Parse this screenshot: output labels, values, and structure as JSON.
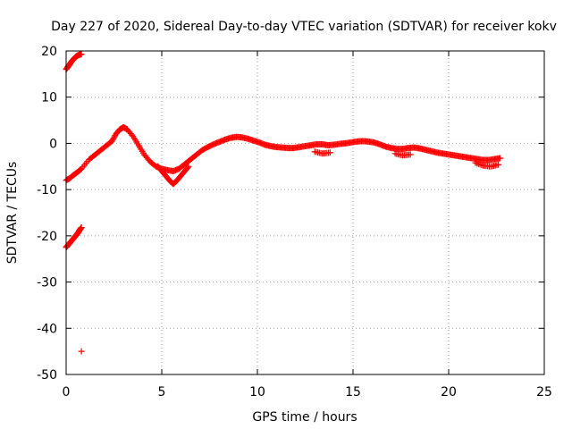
{
  "chart_data": {
    "type": "scatter",
    "title": "Day 227 of 2020, Sidereal Day-to-day VTEC variation (SDTVAR) for receiver kokv",
    "xlabel": "GPS time / hours",
    "ylabel": "SDTVAR / TECUs",
    "xlim": [
      0,
      25
    ],
    "ylim": [
      -50,
      20
    ],
    "xticks": [
      0,
      5,
      10,
      15,
      20,
      25
    ],
    "yticks": [
      -50,
      -40,
      -30,
      -20,
      -10,
      0,
      10,
      20
    ],
    "xtick_labels": [
      "0",
      "5",
      "10",
      "15",
      "20",
      "25"
    ],
    "ytick_labels": [
      "-50",
      "-40",
      "-30",
      "-20",
      "-10",
      "0",
      "10",
      "20"
    ],
    "grid": true,
    "marker": "plus",
    "color": "#ff0000",
    "series": [
      {
        "name": "arc-top",
        "x": [
          0.0,
          0.1,
          0.2,
          0.3,
          0.4,
          0.5,
          0.6,
          0.7,
          0.8
        ],
        "y": [
          16,
          16.6,
          17.2,
          17.8,
          18.3,
          18.7,
          19.0,
          19.2,
          19.3
        ]
      },
      {
        "name": "arc-main",
        "x": [
          0.0,
          0.2,
          0.4,
          0.6,
          0.8,
          1.2,
          1.5,
          1.8,
          2.1,
          2.4,
          2.6,
          2.8,
          3.0,
          3.2,
          3.5,
          3.8,
          4.1,
          4.4,
          4.7,
          5.0,
          5.3,
          5.6,
          5.9,
          6.2,
          6.5,
          6.8,
          7.1,
          7.4,
          7.7,
          8.0,
          8.3,
          8.6,
          8.9,
          9.2,
          9.5,
          9.8,
          10.1,
          10.4,
          10.7,
          11.0,
          11.3,
          11.6,
          11.9,
          12.2,
          12.5,
          12.8,
          13.1,
          13.4,
          13.7,
          14.0,
          14.3,
          14.6,
          14.9,
          15.2,
          15.5,
          15.8,
          16.1,
          16.4,
          16.7,
          17.0,
          17.3,
          17.6,
          17.9,
          18.2,
          18.5,
          18.8,
          19.1,
          19.4,
          19.7,
          20.0,
          20.3,
          20.6,
          20.9,
          21.2,
          21.5,
          21.8,
          22.1,
          22.4,
          22.7
        ],
        "y": [
          -8,
          -7.5,
          -6.8,
          -6.2,
          -5.5,
          -3.5,
          -2.5,
          -1.5,
          -0.5,
          0.5,
          2.0,
          3.0,
          3.5,
          3.0,
          1.5,
          -0.5,
          -2.5,
          -4.0,
          -5.0,
          -5.5,
          -5.8,
          -6.0,
          -5.5,
          -4.5,
          -3.5,
          -2.5,
          -1.5,
          -0.8,
          -0.2,
          0.3,
          0.8,
          1.2,
          1.4,
          1.3,
          1.0,
          0.6,
          0.2,
          -0.3,
          -0.6,
          -0.8,
          -0.9,
          -1.0,
          -1.0,
          -0.8,
          -0.6,
          -0.4,
          -0.2,
          -0.2,
          -0.4,
          -0.3,
          -0.1,
          0.0,
          0.2,
          0.4,
          0.5,
          0.4,
          0.2,
          -0.2,
          -0.7,
          -1.0,
          -1.2,
          -1.2,
          -1.0,
          -0.9,
          -1.1,
          -1.4,
          -1.7,
          -2.0,
          -2.2,
          -2.4,
          -2.6,
          -2.8,
          -3.0,
          -3.2,
          -3.4,
          -3.6,
          -3.6,
          -3.4,
          -3.2
        ]
      },
      {
        "name": "arc-dip",
        "x": [
          4.8,
          5.0,
          5.2,
          5.4,
          5.6,
          5.8,
          6.0,
          6.2,
          6.4
        ],
        "y": [
          -5.0,
          -6.0,
          -7.0,
          -8.0,
          -8.8,
          -8.0,
          -7.0,
          -6.0,
          -5.0
        ]
      },
      {
        "name": "arc-lower-band",
        "x": [
          13.0,
          13.4,
          13.8,
          17.2,
          17.6,
          18.0,
          21.4,
          21.8,
          22.2,
          22.6
        ],
        "y": [
          -1.8,
          -2.2,
          -2.0,
          -2.2,
          -2.6,
          -2.4,
          -4.2,
          -4.8,
          -5.0,
          -4.6
        ]
      },
      {
        "name": "arc-bottom",
        "x": [
          0.0,
          0.1,
          0.2,
          0.3,
          0.4,
          0.5,
          0.6,
          0.7,
          0.8
        ],
        "y": [
          -22.5,
          -22.0,
          -21.5,
          -21.0,
          -20.5,
          -20.0,
          -19.5,
          -18.8,
          -18.2
        ]
      },
      {
        "name": "outlier",
        "x": [
          0.8
        ],
        "y": [
          -45
        ]
      }
    ]
  }
}
